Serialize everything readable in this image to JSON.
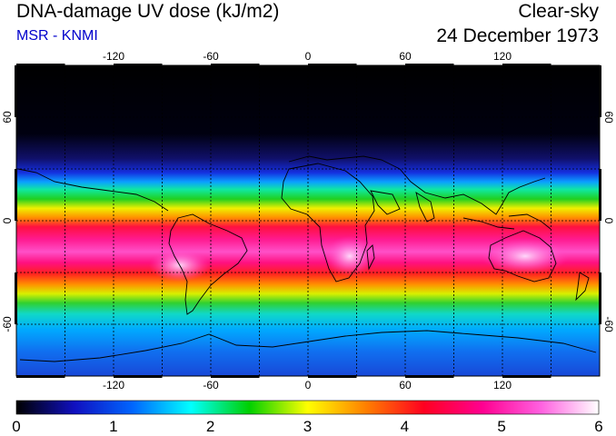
{
  "header": {
    "title": "DNA-damage UV dose (kJ/m2)",
    "source": "MSR - KNMI",
    "condition": "Clear-sky",
    "date": "24 December 1973"
  },
  "map": {
    "lon_ticks": [
      -120,
      -60,
      0,
      60,
      120
    ],
    "lat_ticks": [
      60,
      0,
      -60
    ],
    "lon_range": [
      -180,
      180
    ],
    "lat_range": [
      -90,
      90
    ],
    "grid": true,
    "gridlines_lon": [
      -150,
      -120,
      -90,
      -60,
      -30,
      0,
      30,
      60,
      90,
      120,
      150
    ],
    "gridlines_lat": [
      60,
      30,
      0,
      -30,
      -60
    ]
  },
  "colorbar": {
    "min": 0,
    "max": 6,
    "ticks": [
      "0",
      "1",
      "2",
      "3",
      "4",
      "5",
      "6"
    ],
    "colors": [
      "#000000",
      "#1010c0",
      "#0066ff",
      "#00ffff",
      "#00d000",
      "#ffff00",
      "#ff8000",
      "#ff0020",
      "#ff0090",
      "#ff60e0",
      "#ffffff"
    ]
  },
  "colors": {
    "title_text": "#000000",
    "source_text": "#0000cc"
  }
}
